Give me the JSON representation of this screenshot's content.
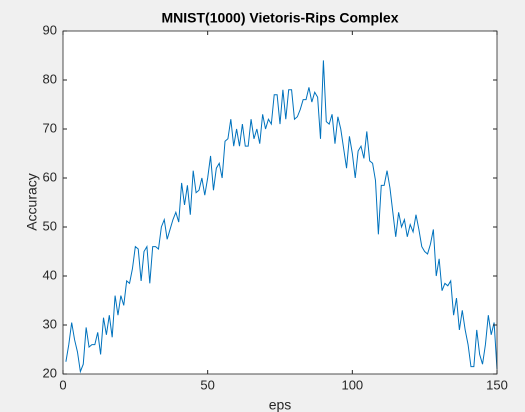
{
  "chart_data": {
    "type": "line",
    "title": "MNIST(1000) Vietoris-Rips Complex",
    "xlabel": "eps",
    "ylabel": "Accuracy",
    "x": [
      1,
      2,
      3,
      4,
      5,
      6,
      7,
      8,
      9,
      10,
      11,
      12,
      13,
      14,
      15,
      16,
      17,
      18,
      19,
      20,
      21,
      22,
      23,
      24,
      25,
      26,
      27,
      28,
      29,
      30,
      31,
      32,
      33,
      34,
      35,
      36,
      37,
      38,
      39,
      40,
      41,
      42,
      43,
      44,
      45,
      46,
      47,
      48,
      49,
      50,
      51,
      52,
      53,
      54,
      55,
      56,
      57,
      58,
      59,
      60,
      61,
      62,
      63,
      64,
      65,
      66,
      67,
      68,
      69,
      70,
      71,
      72,
      73,
      74,
      75,
      76,
      77,
      78,
      79,
      80,
      81,
      82,
      83,
      84,
      85,
      86,
      87,
      88,
      89,
      90,
      91,
      92,
      93,
      94,
      95,
      96,
      97,
      98,
      99,
      100,
      101,
      102,
      103,
      104,
      105,
      106,
      107,
      108,
      109,
      110,
      111,
      112,
      113,
      114,
      115,
      116,
      117,
      118,
      119,
      120,
      121,
      122,
      123,
      124,
      125,
      126,
      127,
      128,
      129,
      130,
      131,
      132,
      133,
      134,
      135,
      136,
      137,
      138,
      139,
      140,
      141,
      142,
      143,
      144,
      145,
      146,
      147,
      148,
      149,
      150
    ],
    "series": [
      {
        "name": "Accuracy",
        "color": "#0072bd",
        "values": [
          22.5,
          26,
          30.5,
          27,
          24.5,
          20.5,
          22,
          29.5,
          25.5,
          26,
          26,
          28.5,
          24,
          31.5,
          28,
          32,
          27.5,
          36,
          32,
          36,
          34,
          39,
          38.5,
          41.5,
          46,
          45.5,
          39,
          45,
          46,
          38.5,
          46,
          46,
          45.5,
          50,
          51.5,
          47.5,
          49.5,
          51.5,
          53,
          51,
          59,
          54.5,
          58.5,
          52.5,
          61.5,
          57,
          57.5,
          60,
          56.5,
          60,
          64.5,
          57.5,
          62,
          63,
          60,
          67.5,
          68,
          72,
          66.5,
          70,
          66.5,
          71,
          66.5,
          66.5,
          72,
          68,
          70,
          67,
          73,
          70,
          72,
          71,
          77,
          77,
          71,
          78,
          72,
          78,
          78,
          72,
          72.5,
          74,
          76,
          76,
          78.5,
          75.5,
          77.5,
          76.5,
          68,
          84,
          71.5,
          71,
          73,
          67,
          72.5,
          70,
          66,
          62,
          68.5,
          65,
          60,
          65.5,
          66.5,
          64,
          69.5,
          63.5,
          63,
          59.5,
          48.5,
          58.5,
          58.5,
          61.5,
          58,
          53,
          48,
          53,
          50,
          51.5,
          48,
          50.5,
          49,
          52.5,
          49.5,
          46,
          45,
          44.5,
          46.5,
          49.5,
          40,
          43.5,
          37,
          38.5,
          38,
          39,
          32,
          35.5,
          29,
          33,
          29,
          26,
          21.5,
          21.5,
          29,
          24,
          22,
          26,
          32,
          28,
          30.5,
          21
        ]
      }
    ],
    "xlim": [
      0,
      150
    ],
    "xticks": [
      0,
      50,
      100,
      150
    ],
    "ylim": [
      20,
      90
    ],
    "yticks": [
      20,
      30,
      40,
      50,
      60,
      70,
      80,
      90
    ]
  }
}
